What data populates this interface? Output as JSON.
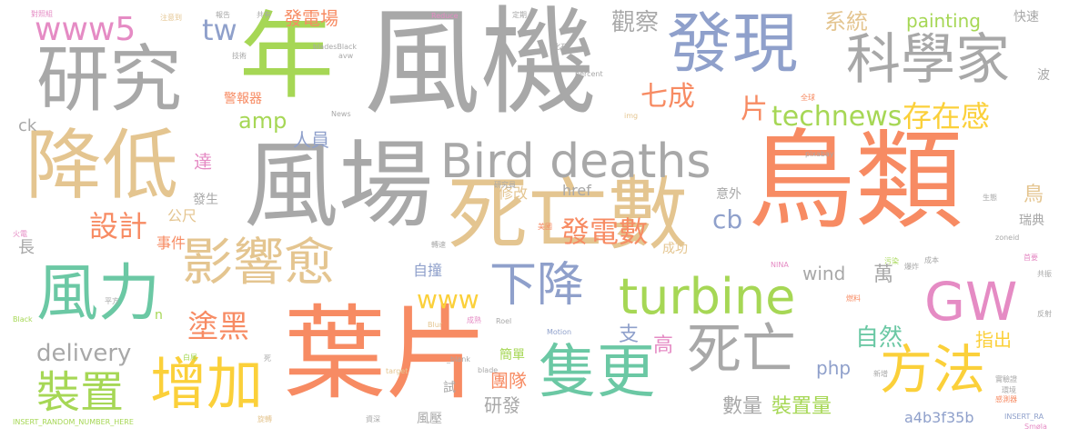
{
  "palette": {
    "gray": "#a8a8a8",
    "orange": "#f78b63",
    "tan": "#e4c590",
    "gold": "#fbd03a",
    "green": "#6bc8a4",
    "lime": "#a6d755",
    "blue": "#8fa0cb",
    "pink": "#e58bc4"
  },
  "words": [
    "鳥類",
    "風機",
    "年",
    "研究",
    "風場",
    "葉片",
    "降低",
    "死亡數",
    "發現",
    "科學家",
    "Bird deaths",
    "turbine",
    "影響愈",
    "風力",
    "GW",
    "增加",
    "隻更",
    "死亡",
    "方法",
    "裝置",
    "下降",
    "www5",
    "tw",
    "technews",
    "存在感",
    "設計",
    "塗黑",
    "七成",
    "片",
    "amp",
    "www",
    "painting",
    "觀察",
    "系統",
    "發電場",
    "人員",
    "發電數",
    "cb",
    "delivery",
    "wind",
    "php",
    "萬",
    "自然",
    "高",
    "支",
    "數量",
    "裝置量",
    "團隊",
    "研發",
    "指出",
    "a4b3f35b",
    "ck",
    "達",
    "事件",
    "公尺",
    "長",
    "鳥",
    "瑞典",
    "意外",
    "成功",
    "自撞",
    "href",
    "修改",
    "發生",
    "快速",
    "波",
    "警報器",
    "簡單",
    "風壓",
    "試",
    "n",
    "INSERT_RANDOM_NUMBER_HERE",
    "INSERT_RA",
    "對照組",
    "注意到",
    "報告",
    "共有",
    "Reduce",
    "定期",
    "bladesBlack",
    "avw",
    "技術",
    "percent",
    "Motion",
    "Blur",
    "Roel",
    "target",
    "_blank",
    "blade",
    "NINA",
    "zoneid",
    "pixabay",
    "Smøla",
    "img",
    "News",
    "Black",
    "火電",
    "平方",
    "死",
    "白尾",
    "成熟",
    "實驗證",
    "環境",
    "感測器",
    "化石",
    "全球",
    "生態",
    "旋轉",
    "資深",
    "研究員",
    "美國",
    "轉速",
    "燃料",
    "成本",
    "爆炸",
    "污染",
    "首要",
    "共振",
    "反射",
    "新增"
  ]
}
